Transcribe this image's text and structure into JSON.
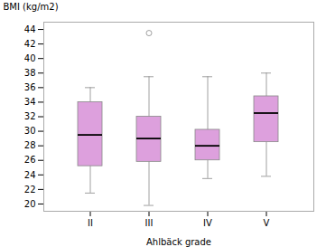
{
  "chart_data": {
    "type": "box",
    "xlabel": "Ahlbäck grade",
    "ylabel": "BMI (kg/m2)",
    "categories": [
      "II",
      "III",
      "IV",
      "V"
    ],
    "whislo": [
      21.5,
      19.8,
      23.5,
      23.8
    ],
    "q1": [
      25.2,
      25.8,
      26.0,
      28.5
    ],
    "med": [
      29.5,
      29.0,
      28.0,
      32.5
    ],
    "q3": [
      34.0,
      32.0,
      30.2,
      34.8
    ],
    "whishi": [
      36.0,
      37.5,
      37.5,
      38.0
    ],
    "fliers": [
      [],
      [
        43.5
      ],
      [],
      []
    ],
    "color": "#DDA0DD",
    "ylim": [
      19,
      45
    ],
    "yticks": [
      20,
      22,
      24,
      26,
      28,
      30,
      32,
      34,
      36,
      38,
      40,
      42,
      44
    ],
    "grid": false
  }
}
